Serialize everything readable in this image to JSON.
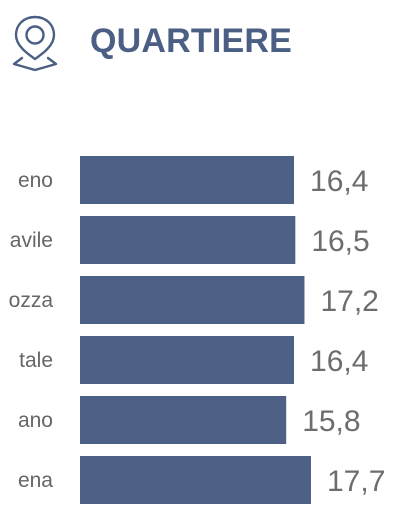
{
  "header": {
    "title": "QUARTIERE",
    "icon": "location-pin-icon",
    "accent_color": "#4a5f83"
  },
  "chart_data": {
    "type": "bar",
    "orientation": "horizontal",
    "categories": [
      "eno",
      "avile",
      "ozza",
      "tale",
      "ano",
      "ena"
    ],
    "values": [
      16.4,
      16.5,
      17.2,
      16.4,
      15.8,
      17.7
    ],
    "value_labels": [
      "16,4",
      "16,5",
      "17,2",
      "16,4",
      "15,8",
      "17,7"
    ],
    "bar_color": "#4d6086",
    "title": "QUARTIERE",
    "grid": false,
    "legend": "none"
  }
}
